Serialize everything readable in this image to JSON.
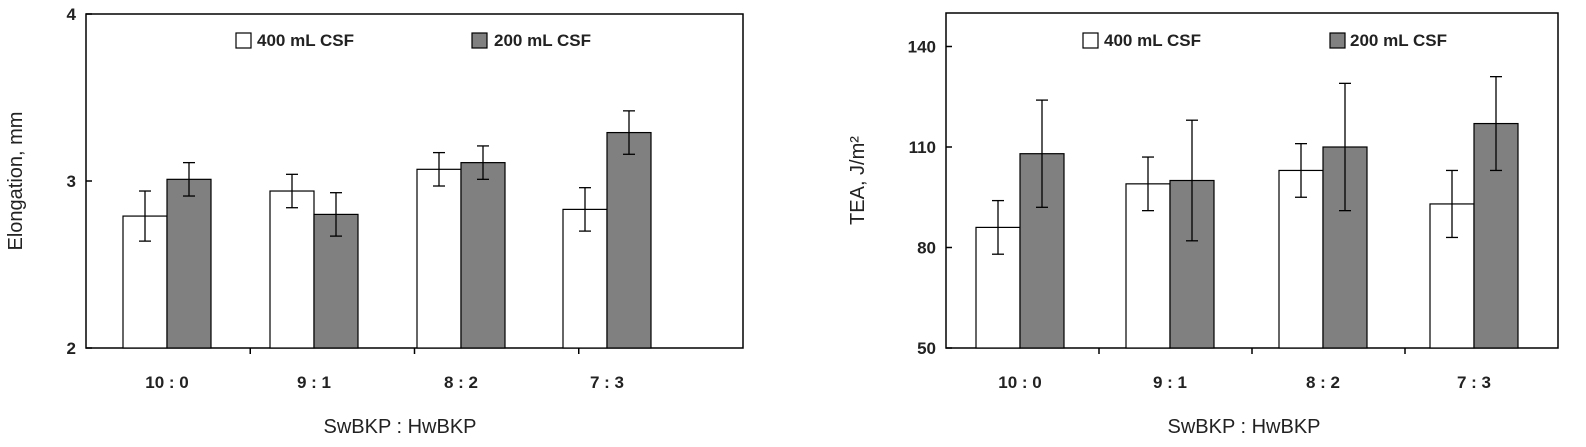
{
  "chart_data": [
    {
      "type": "bar",
      "categories": [
        "10 : 0",
        "9 : 1",
        "8 : 2",
        "7 : 3"
      ],
      "series": [
        {
          "name": "400 mL CSF",
          "color": "#ffffff",
          "values": [
            2.79,
            2.94,
            3.07,
            2.83
          ],
          "errors": [
            0.15,
            0.1,
            0.1,
            0.13
          ]
        },
        {
          "name": "200 mL CSF",
          "color": "#808080",
          "values": [
            3.01,
            2.8,
            3.11,
            3.29
          ],
          "errors": [
            0.1,
            0.13,
            0.1,
            0.13
          ]
        }
      ],
      "xlabel": "SwBKP : HwBKP",
      "ylabel": "Elongation, mm",
      "ylim": [
        2,
        4
      ],
      "yticks": [
        "2",
        "3",
        "4"
      ],
      "grid": false,
      "legend": "top"
    },
    {
      "type": "bar",
      "categories": [
        "10 : 0",
        "9 : 1",
        "8 : 2",
        "7 : 3"
      ],
      "series": [
        {
          "name": "400 mL CSF",
          "color": "#ffffff",
          "values": [
            86,
            99,
            103,
            93
          ],
          "errors": [
            8,
            8,
            8,
            10
          ]
        },
        {
          "name": "200 mL CSF",
          "color": "#808080",
          "values": [
            108,
            100,
            110,
            117
          ],
          "errors": [
            16,
            18,
            19,
            14
          ]
        }
      ],
      "xlabel": "SwBKP : HwBKP",
      "ylabel": "TEA, J/m²",
      "ylim": [
        50,
        150
      ],
      "yticks": [
        "50",
        "80",
        "110",
        "140"
      ],
      "grid": false,
      "legend": "top"
    }
  ]
}
